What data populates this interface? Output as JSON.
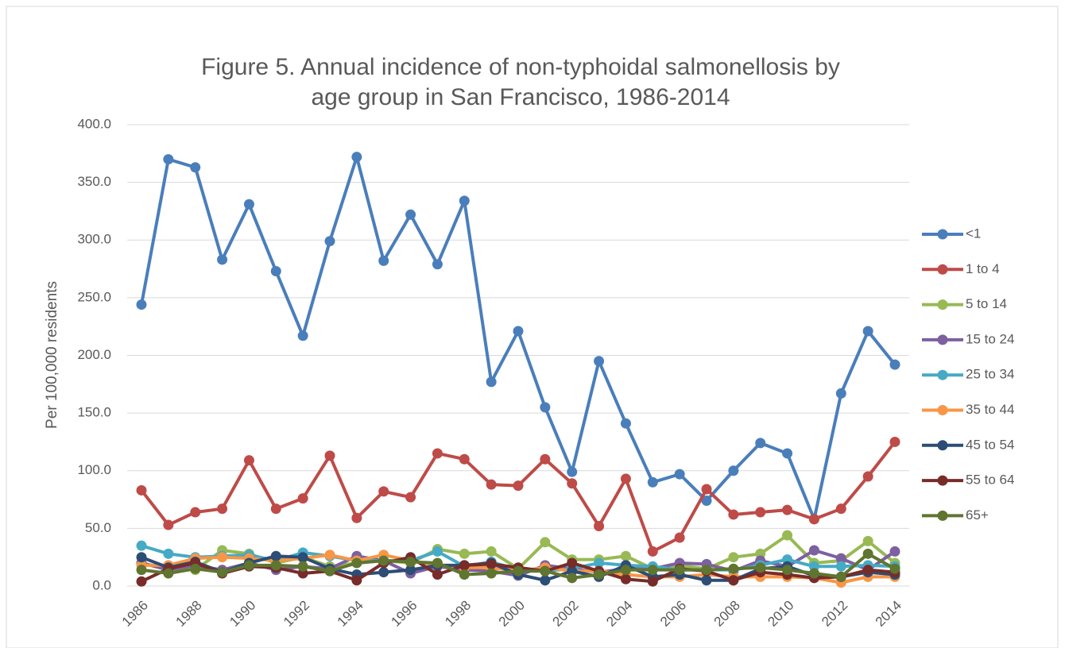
{
  "chart_data": {
    "type": "line",
    "title": "Figure 5. Annual incidence of non-typhoidal salmonellosis by age group in San Francisco, 1986-2014",
    "y_label": "Per 100,000 residents",
    "categories": [
      "1986",
      null,
      "1988",
      null,
      "1990",
      null,
      "1992",
      null,
      "1994",
      null,
      "1996",
      null,
      "1998",
      null,
      "2000",
      null,
      "2002",
      null,
      "2004",
      null,
      "2006",
      null,
      "2008",
      null,
      "2010",
      null,
      "2012",
      null,
      "2014"
    ],
    "ylim": [
      0,
      400
    ],
    "yticks": [
      {
        "value": 0,
        "label": "0.0"
      },
      {
        "value": 50,
        "label": "50.0"
      },
      {
        "value": 100,
        "label": "100.0"
      },
      {
        "value": 150,
        "label": "150.0"
      },
      {
        "value": 200,
        "label": "200.0"
      },
      {
        "value": 250,
        "label": "250.0"
      },
      {
        "value": 300,
        "label": "300.0"
      },
      {
        "value": 350,
        "label": "350.0"
      },
      {
        "value": 400,
        "label": "400.0"
      }
    ],
    "grid": true,
    "legend": "right",
    "series": [
      {
        "name": "<1",
        "color": "#4a7ebb",
        "values": [
          244,
          370,
          363,
          283,
          331,
          273,
          217,
          299,
          372,
          282,
          322,
          279,
          334,
          177,
          221,
          155,
          99,
          195,
          141,
          90,
          97,
          74,
          100,
          124,
          115,
          58,
          167,
          221,
          192
        ]
      },
      {
        "name": "1 to 4",
        "color": "#be4b48",
        "values": [
          83,
          53,
          64,
          67,
          109,
          67,
          76,
          113,
          59,
          82,
          77,
          115,
          110,
          88,
          87,
          110,
          89,
          52,
          93,
          30,
          42,
          84,
          62,
          64,
          66,
          58,
          67,
          95,
          125
        ]
      },
      {
        "name": "5 to 14",
        "color": "#98b954",
        "values": [
          20,
          15,
          14,
          31,
          28,
          20,
          25,
          17,
          20,
          22,
          20,
          32,
          28,
          30,
          15,
          38,
          23,
          23,
          26,
          15,
          18,
          15,
          25,
          28,
          44,
          20,
          22,
          39,
          20
        ]
      },
      {
        "name": "15 to 24",
        "color": "#7d60a0",
        "values": [
          20,
          14,
          18,
          14,
          20,
          14,
          17,
          15,
          26,
          22,
          11,
          17,
          14,
          13,
          9,
          18,
          15,
          12,
          15,
          15,
          20,
          19,
          13,
          22,
          17,
          31,
          24,
          14,
          30
        ]
      },
      {
        "name": "25 to 34",
        "color": "#46aac5",
        "values": [
          35,
          28,
          25,
          26,
          27,
          22,
          29,
          26,
          22,
          22,
          22,
          30,
          17,
          21,
          14,
          13,
          15,
          20,
          18,
          17,
          14,
          14,
          14,
          18,
          23,
          17,
          17,
          18,
          17
        ]
      },
      {
        "name": "35 to 44",
        "color": "#f79646",
        "values": [
          18,
          18,
          24,
          25,
          24,
          22,
          24,
          27,
          22,
          27,
          22,
          18,
          16,
          16,
          13,
          16,
          13,
          13,
          10,
          8,
          8,
          10,
          8,
          8,
          8,
          7,
          3,
          8,
          8
        ]
      },
      {
        "name": "45 to 54",
        "color": "#2c4d75",
        "values": [
          25,
          16,
          21,
          12,
          20,
          26,
          25,
          15,
          10,
          12,
          14,
          18,
          18,
          20,
          10,
          5,
          13,
          8,
          18,
          8,
          10,
          5,
          5,
          15,
          17,
          9,
          8,
          12,
          10
        ]
      },
      {
        "name": "55 to 64",
        "color": "#772c2a",
        "values": [
          4,
          15,
          20,
          11,
          17,
          16,
          11,
          13,
          5,
          20,
          25,
          10,
          18,
          19,
          16,
          13,
          20,
          13,
          6,
          4,
          15,
          13,
          5,
          12,
          10,
          7,
          8,
          14,
          12
        ]
      },
      {
        "name": "65+",
        "color": "#5f7530",
        "values": [
          14,
          11,
          15,
          12,
          18,
          18,
          17,
          13,
          20,
          22,
          21,
          20,
          10,
          11,
          13,
          13,
          7,
          10,
          14,
          14,
          14,
          14,
          15,
          16,
          14,
          11,
          8,
          28,
          15
        ]
      }
    ]
  }
}
